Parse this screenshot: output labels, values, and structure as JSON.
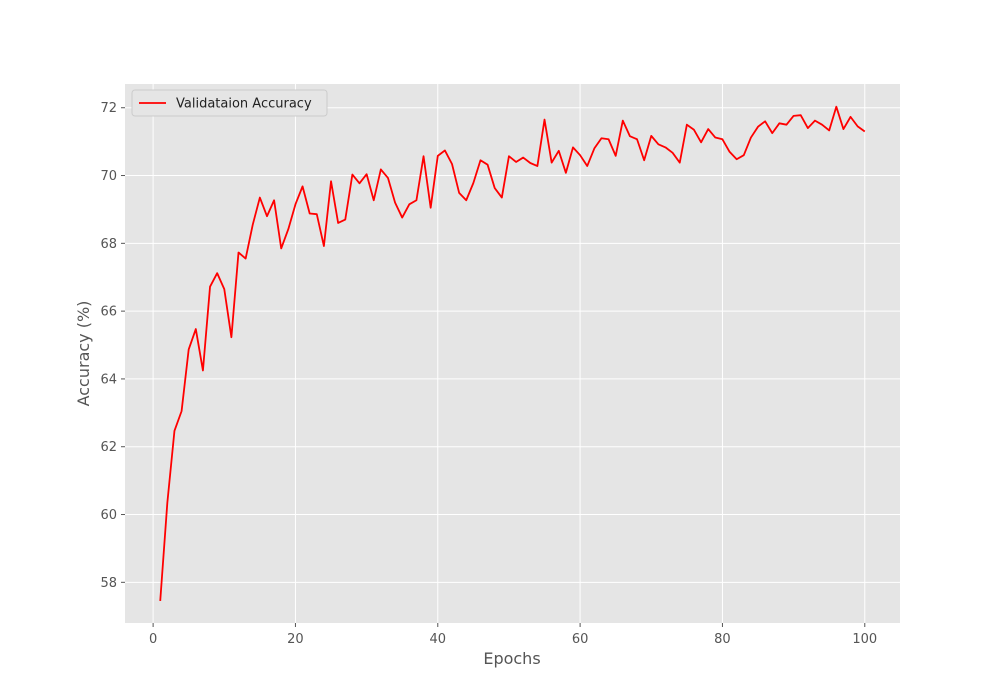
{
  "chart_data": {
    "type": "line",
    "title": "",
    "xlabel": "Epochs",
    "ylabel": "Accuracy (%)",
    "xlim": [
      -3.95,
      104.95
    ],
    "ylim": [
      56.8,
      72.7
    ],
    "xticks": [
      0,
      20,
      40,
      60,
      80,
      100
    ],
    "yticks": [
      58,
      60,
      62,
      64,
      66,
      68,
      70,
      72
    ],
    "grid": true,
    "background": "#e5e5e5",
    "legend_position": "top-left",
    "series": [
      {
        "name": "Validataion Accuracy",
        "color": "#ff0000",
        "x": [
          1,
          2,
          3,
          4,
          5,
          6,
          7,
          8,
          9,
          10,
          11,
          12,
          13,
          14,
          15,
          16,
          17,
          18,
          19,
          20,
          21,
          22,
          23,
          24,
          25,
          26,
          27,
          28,
          29,
          30,
          31,
          32,
          33,
          34,
          35,
          36,
          37,
          38,
          39,
          40,
          41,
          42,
          43,
          44,
          45,
          46,
          47,
          48,
          49,
          50,
          51,
          52,
          53,
          54,
          55,
          56,
          57,
          58,
          59,
          60,
          61,
          62,
          63,
          64,
          65,
          66,
          67,
          68,
          69,
          70,
          71,
          72,
          73,
          74,
          75,
          76,
          77,
          78,
          79,
          80,
          81,
          82,
          83,
          84,
          85,
          86,
          87,
          88,
          89,
          90,
          91,
          92,
          93,
          94,
          95,
          96,
          97,
          98,
          99,
          100
        ],
        "y": [
          57.45,
          60.35,
          62.47,
          63.05,
          64.87,
          65.47,
          64.25,
          66.72,
          67.12,
          66.65,
          65.23,
          67.73,
          67.55,
          68.55,
          69.35,
          68.8,
          69.27,
          67.85,
          68.42,
          69.15,
          69.68,
          68.88,
          68.86,
          67.92,
          69.83,
          68.6,
          68.7,
          70.03,
          69.77,
          70.04,
          69.27,
          70.18,
          69.93,
          69.2,
          68.76,
          69.15,
          69.27,
          70.57,
          69.05,
          70.58,
          70.74,
          70.34,
          69.49,
          69.27,
          69.78,
          70.45,
          70.32,
          69.63,
          69.35,
          70.57,
          70.4,
          70.53,
          70.37,
          70.28,
          71.65,
          70.38,
          70.73,
          70.08,
          70.83,
          70.6,
          70.28,
          70.8,
          71.1,
          71.07,
          70.58,
          71.62,
          71.16,
          71.07,
          70.45,
          71.17,
          70.92,
          70.83,
          70.67,
          70.38,
          71.5,
          71.35,
          70.98,
          71.37,
          71.12,
          71.07,
          70.7,
          70.48,
          70.6,
          71.12,
          71.44,
          71.6,
          71.25,
          71.54,
          71.5,
          71.76,
          71.78,
          71.4,
          71.62,
          71.5,
          71.33,
          72.03,
          71.37,
          71.73,
          71.45,
          71.3
        ]
      }
    ]
  }
}
